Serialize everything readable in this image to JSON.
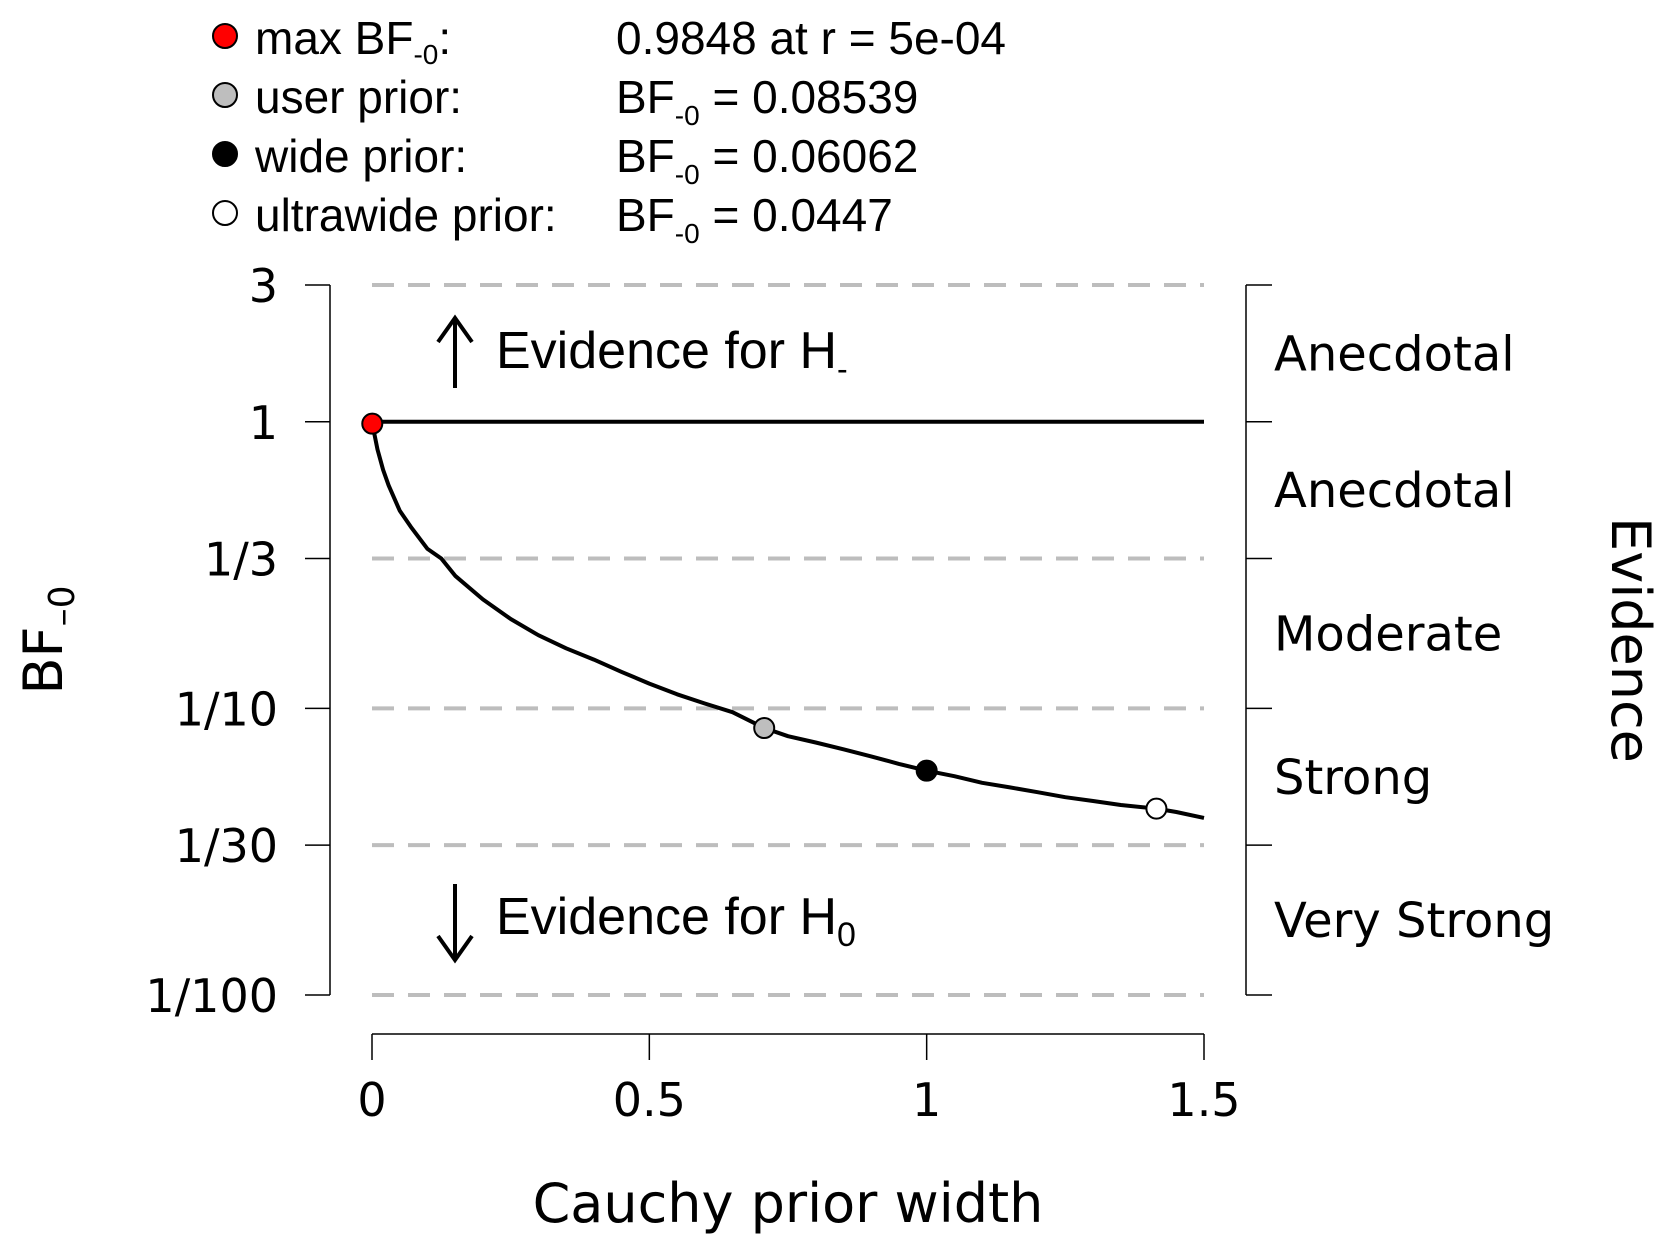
{
  "legend": {
    "items": [
      {
        "label": "max BF",
        "label_sub": "-0",
        "label_suffix": ":",
        "value_prefix": "",
        "value_sub": "",
        "value": "0.9848 at r = 5e-04",
        "marker": "#ff0000"
      },
      {
        "label": "user prior:",
        "label_sub": "",
        "label_suffix": "",
        "value_prefix": "BF",
        "value_sub": "-0",
        "value": " = 0.08539",
        "marker": "#bebebe"
      },
      {
        "label": "wide prior:",
        "label_sub": "",
        "label_suffix": "",
        "value_prefix": "BF",
        "value_sub": "-0",
        "value": " = 0.06062",
        "marker": "#000000"
      },
      {
        "label": "ultrawide prior:",
        "label_sub": "",
        "label_suffix": "",
        "value_prefix": "BF",
        "value_sub": "-0",
        "value": " = 0.0447",
        "marker": "#ffffff"
      }
    ]
  },
  "annotations": {
    "up_text": "Evidence for H",
    "up_sub": "-",
    "down_text": "Evidence for H",
    "down_sub": "0"
  },
  "chart_data": {
    "type": "line",
    "xlabel": "Cauchy prior width",
    "ylabel": "BF",
    "ylabel_sub": "–0",
    "right_label": "Evidence",
    "x_ticks": [
      0,
      0.5,
      1,
      1.5
    ],
    "x_tick_labels": [
      "0",
      "0.5",
      "1",
      "1.5"
    ],
    "xlim": [
      0,
      1.5
    ],
    "y_scale": "log",
    "y_ticks": [
      3,
      1,
      0.3333,
      0.1,
      0.03333,
      0.01
    ],
    "y_tick_labels": [
      "3",
      "1",
      "1/3",
      "1/10",
      "1/30",
      "1/100"
    ],
    "ylim": [
      0.01,
      3
    ],
    "evidence_categories": [
      "Anecdotal",
      "Anecdotal",
      "Moderate",
      "Strong",
      "Very Strong"
    ],
    "reference_line": 1,
    "series": [
      {
        "x": [
          0.0005,
          0.01,
          0.02,
          0.03,
          0.05,
          0.07,
          0.1,
          0.125,
          0.15,
          0.2,
          0.25,
          0.3,
          0.35,
          0.4,
          0.45,
          0.5,
          0.55,
          0.6,
          0.65,
          0.7071,
          0.75,
          0.8,
          0.85,
          0.9,
          0.95,
          1.0,
          1.05,
          1.1,
          1.15,
          1.2,
          1.25,
          1.3,
          1.35,
          1.4142,
          1.45,
          1.5
        ],
        "y": [
          0.9848,
          0.8,
          0.68,
          0.6,
          0.49,
          0.43,
          0.36,
          0.3333,
          0.29,
          0.24,
          0.205,
          0.18,
          0.162,
          0.148,
          0.134,
          0.122,
          0.112,
          0.104,
          0.097,
          0.08539,
          0.08,
          0.076,
          0.072,
          0.068,
          0.064,
          0.06062,
          0.058,
          0.055,
          0.053,
          0.051,
          0.049,
          0.0475,
          0.046,
          0.0447,
          0.0435,
          0.0415
        ]
      }
    ],
    "points": [
      {
        "name": "max BF",
        "x": 0.0005,
        "y": 0.9848,
        "color": "#ff0000"
      },
      {
        "name": "user prior",
        "x": 0.7071,
        "y": 0.08539,
        "color": "#bebebe"
      },
      {
        "name": "wide prior",
        "x": 1.0,
        "y": 0.06062,
        "color": "#000000"
      },
      {
        "name": "ultrawide prior",
        "x": 1.4142,
        "y": 0.0447,
        "color": "#ffffff"
      }
    ]
  }
}
